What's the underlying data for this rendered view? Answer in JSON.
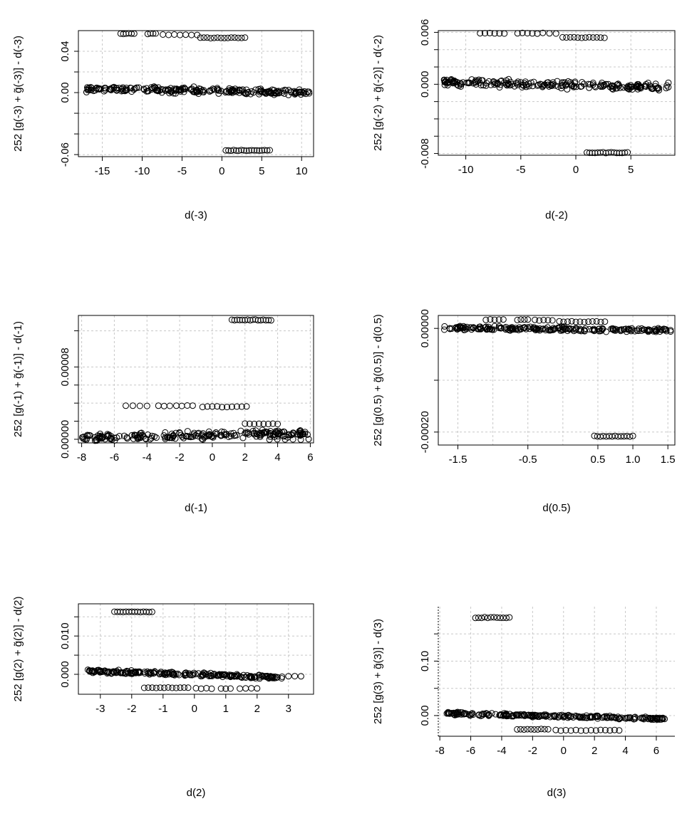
{
  "chart_data": [
    {
      "type": "scatter",
      "xlabel": "d(-3)",
      "ylabel": "252 [g(-3) + g̃(-3)] - d(-3)",
      "xlim": [
        -18,
        11.5
      ],
      "ylim": [
        -0.062,
        0.06
      ],
      "xticks": [
        -15,
        -10,
        -5,
        0,
        5,
        10
      ],
      "xtick_labels": [
        "-15",
        "-10",
        "-5",
        "0",
        "5",
        "10"
      ],
      "yticks": [
        0.04,
        0.0,
        -0.06
      ],
      "ytick_labels": [
        "0.04",
        "0.00",
        "-0.06"
      ],
      "yminor": [
        0.02,
        -0.02,
        -0.04
      ],
      "grid": true,
      "box": true,
      "clusters": [
        {
          "x": [
            -12.7,
            -11.0
          ],
          "y": 0.057,
          "n": 6
        },
        {
          "x": [
            -9.3,
            -8.3
          ],
          "y": 0.057,
          "n": 4
        },
        {
          "x": [
            -7.4,
            -3.1
          ],
          "y": 0.056,
          "n": 7
        },
        {
          "x": [
            -2.7,
            2.9
          ],
          "y": 0.053,
          "n": 14
        },
        {
          "x": [
            -17,
            11
          ],
          "y": 0.003,
          "n": 240,
          "trend": [
            0.004,
            0.0
          ],
          "spread": 0.004
        },
        {
          "x": [
            0.5,
            6.0
          ],
          "y": -0.056,
          "n": 18
        }
      ]
    },
    {
      "type": "scatter",
      "xlabel": "d(-2)",
      "ylabel": "252 [g(-2) + g̃(-2)] - d(-2)",
      "xlim": [
        -12.5,
        9
      ],
      "ylim": [
        -0.0082,
        0.0062
      ],
      "xticks": [
        -10,
        -5,
        0,
        5
      ],
      "xtick_labels": [
        "-10",
        "-5",
        "0",
        "5"
      ],
      "yticks": [
        0.006,
        0.0,
        -0.008
      ],
      "ytick_labels": [
        "0.006",
        "0.000",
        "-0.008"
      ],
      "yminor": [
        0.004,
        0.002,
        -0.002,
        -0.004,
        -0.006
      ],
      "grid": true,
      "box": true,
      "clusters": [
        {
          "x": [
            -8.7,
            -6.5
          ],
          "y": 0.0059,
          "n": 6
        },
        {
          "x": [
            -5.3,
            -3.5
          ],
          "y": 0.0059,
          "n": 5
        },
        {
          "x": [
            -3.0,
            -1.8
          ],
          "y": 0.0059,
          "n": 3
        },
        {
          "x": [
            -1.2,
            2.6
          ],
          "y": 0.0054,
          "n": 12
        },
        {
          "x": [
            -12,
            8.5
          ],
          "y": 0.0,
          "n": 220,
          "trend": [
            0.0002,
            -0.0003
          ],
          "spread": 0.0006
        },
        {
          "x": [
            1.0,
            4.7
          ],
          "y": -0.0079,
          "n": 16
        }
      ]
    },
    {
      "type": "scatter",
      "xlabel": "d(-1)",
      "ylabel": "252 [g(-1) + g̃(-1)] - d(-1)",
      "xlim": [
        -8.2,
        6.2
      ],
      "ylim": [
        -4e-06,
        0.000137
      ],
      "xticks": [
        -8,
        -6,
        -4,
        -2,
        0,
        2,
        4,
        6
      ],
      "xtick_labels": [
        "-8",
        "-6",
        "-4",
        "-2",
        "0",
        "2",
        "4",
        "6"
      ],
      "yticks": [
        8e-05,
        0.0
      ],
      "ytick_labels": [
        "0.00008",
        "0.00000"
      ],
      "yminor": [
        0.00012,
        6e-05,
        4e-05,
        2e-05
      ],
      "grid": true,
      "box": true,
      "clusters": [
        {
          "x": [
            1.2,
            3.6
          ],
          "y": 0.000132,
          "n": 16
        },
        {
          "x": [
            -5.3,
            -4.0
          ],
          "y": 3.7e-05,
          "n": 4
        },
        {
          "x": [
            -3.3,
            -2.6
          ],
          "y": 3.7e-05,
          "n": 3
        },
        {
          "x": [
            -2.2,
            -1.2
          ],
          "y": 3.7e-05,
          "n": 4
        },
        {
          "x": [
            -0.6,
            2.1
          ],
          "y": 3.6e-05,
          "n": 10
        },
        {
          "x": [
            2.0,
            4.0
          ],
          "y": 1.7e-05,
          "n": 8
        },
        {
          "x": [
            -8,
            6
          ],
          "y": 5e-06,
          "n": 220,
          "trend": [
            1e-06,
            7e-06
          ],
          "spread": 6e-06
        },
        {
          "x": [
            3.5,
            5.9
          ],
          "y": 0.0,
          "n": 6
        }
      ]
    },
    {
      "type": "scatter",
      "xlabel": "d(0.5)",
      "ylabel": "252 [g(0.5) + g̃(0.5)] - d(0.5)",
      "xlim": [
        -1.78,
        1.6
      ],
      "ylim": [
        -0.000225,
        2.5e-05
      ],
      "xticks": [
        -1.5,
        -0.5,
        0.5,
        1.0,
        1.5
      ],
      "xtick_labels": [
        "-1.5",
        "-0.5",
        "0.5",
        "1.0",
        "1.5"
      ],
      "xgrid": [
        -1.5,
        -1.0,
        -0.5,
        0.0,
        0.5,
        1.0,
        1.5
      ],
      "yticks": [
        0.0,
        -0.0002
      ],
      "ytick_labels": [
        "0.00000",
        "-0.00020"
      ],
      "yminor": [
        -0.0001
      ],
      "grid": true,
      "box": true,
      "clusters": [
        {
          "x": [
            -1.1,
            -0.85
          ],
          "y": 1.7e-05,
          "n": 5
        },
        {
          "x": [
            -0.65,
            -0.5
          ],
          "y": 1.7e-05,
          "n": 4
        },
        {
          "x": [
            -0.4,
            -0.15
          ],
          "y": 1.6e-05,
          "n": 5
        },
        {
          "x": [
            -0.05,
            0.6
          ],
          "y": 1.3e-05,
          "n": 12
        },
        {
          "x": [
            -1.7,
            1.55
          ],
          "y": 0.0,
          "n": 220,
          "trend": [
            1e-06,
            -4e-06
          ],
          "spread": 6e-06
        },
        {
          "x": [
            0.45,
            1.0
          ],
          "y": -0.000208,
          "n": 14
        }
      ]
    },
    {
      "type": "scatter",
      "xlabel": "d(2)",
      "ylabel": "252 [g(2) + g̃(2)] - d(2)",
      "xlim": [
        -3.7,
        3.8
      ],
      "ylim": [
        -0.0052,
        0.0184
      ],
      "xticks": [
        -3,
        -2,
        -1,
        0,
        1,
        2,
        3
      ],
      "xtick_labels": [
        "-3",
        "-2",
        "-1",
        "0",
        "1",
        "2",
        "3"
      ],
      "yticks": [
        0.01,
        0.0
      ],
      "ytick_labels": [
        "0.010",
        "0.000"
      ],
      "yminor": [
        0.015,
        0.005
      ],
      "grid": true,
      "box": true,
      "clusters": [
        {
          "x": [
            -2.55,
            -1.35
          ],
          "y": 0.0163,
          "n": 14
        },
        {
          "x": [
            -3.4,
            2.8
          ],
          "y": 0.0005,
          "n": 230,
          "trend": [
            0.0009,
            -0.0008
          ],
          "spread": 0.0007
        },
        {
          "x": [
            3.0,
            3.4
          ],
          "y": -0.0005,
          "n": 3
        },
        {
          "x": [
            -1.6,
            -0.2
          ],
          "y": -0.0035,
          "n": 12
        },
        {
          "x": [
            0.05,
            0.55
          ],
          "y": -0.0037,
          "n": 4
        },
        {
          "x": [
            0.85,
            1.15
          ],
          "y": -0.0037,
          "n": 3
        },
        {
          "x": [
            1.45,
            2.0
          ],
          "y": -0.0037,
          "n": 4
        }
      ]
    },
    {
      "type": "scatter",
      "xlabel": "d(3)",
      "ylabel": "252 [g(3) + g̃(3)] - d(3)",
      "xlim": [
        -8.1,
        7.2
      ],
      "ylim": [
        -0.038,
        0.2
      ],
      "xticks": [
        -8,
        -6,
        -4,
        -2,
        0,
        2,
        4,
        6
      ],
      "xtick_labels": [
        "-8",
        "-6",
        "-4",
        "-2",
        "0",
        "2",
        "4",
        "6"
      ],
      "yticks": [
        0.1,
        0.0
      ],
      "ytick_labels": [
        "0.10",
        "0.00"
      ],
      "yminor": [
        0.15,
        0.05
      ],
      "grid": true,
      "box": false,
      "clusters": [
        {
          "x": [
            -5.7,
            -3.5
          ],
          "y": 0.18,
          "n": 12
        },
        {
          "x": [
            -7.6,
            6.6
          ],
          "y": 0.0,
          "n": 230,
          "trend": [
            0.004,
            -0.006
          ],
          "spread": 0.004
        },
        {
          "x": [
            -3.0,
            -1.0
          ],
          "y": -0.025,
          "n": 10
        },
        {
          "x": [
            -0.5,
            2.1
          ],
          "y": -0.027,
          "n": 9
        },
        {
          "x": [
            2.4,
            3.6
          ],
          "y": -0.027,
          "n": 5
        }
      ]
    }
  ]
}
